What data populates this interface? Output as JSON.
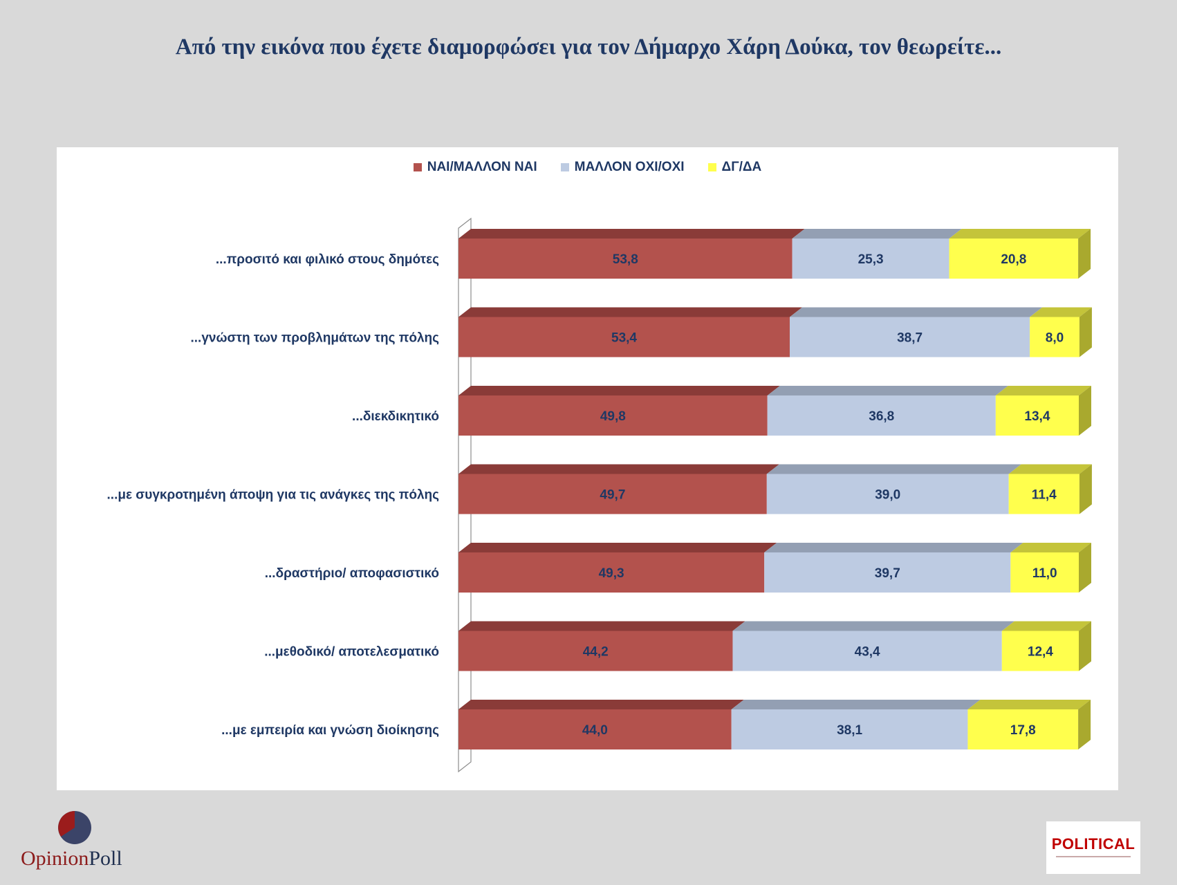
{
  "title": "Από την εικόνα που έχετε διαμορφώσει για τον Δήμαρχο Χάρη Δούκα, τον θεωρείτε...",
  "logos": {
    "left": "OpinionPoll",
    "left_part1": "Opinion",
    "left_part2": "Poll",
    "right": "POLITICAL"
  },
  "colors": {
    "series_1": "#b3524d",
    "series_1_top": "#8a3b38",
    "series_2": "#bdcbe2",
    "series_2_top": "#939fb3",
    "series_3": "#ffff4d",
    "series_3_top": "#c4c43a",
    "series_3_side": "#a9a92e",
    "label": "#1f3864"
  },
  "chart_data": {
    "type": "bar",
    "orientation": "horizontal",
    "stacked": true,
    "style": "3d",
    "legend_position": "top-center",
    "categories": [
      "...προσιτό και φιλικό στους δημότες",
      "...γνώστη των προβλημάτων της πόλης",
      "...διεκδικητικό",
      "...με συγκροτημένη άποψη για τις ανάγκες της πόλης",
      "...δραστήριο/ αποφασιστικό",
      "...μεθοδικό/ αποτελεσματικό",
      "...με εμπειρία και γνώση διοίκησης"
    ],
    "series": [
      {
        "name": "ΝΑΙ/ΜΑΛΛΟΝ ΝΑΙ",
        "values": [
          53.8,
          53.4,
          49.8,
          49.7,
          49.3,
          44.2,
          44.0
        ],
        "labels": [
          "53,8",
          "53,4",
          "49,8",
          "49,7",
          "49,3",
          "44,2",
          "44,0"
        ]
      },
      {
        "name": "ΜΑΛΛΟΝ ΟΧΙ/ΟΧΙ",
        "values": [
          25.3,
          38.7,
          36.8,
          39.0,
          39.7,
          43.4,
          38.1
        ],
        "labels": [
          "25,3",
          "38,7",
          "36,8",
          "39,0",
          "39,7",
          "43,4",
          "38,1"
        ]
      },
      {
        "name": "ΔΓ/ΔΑ",
        "values": [
          20.8,
          8.0,
          13.4,
          11.4,
          11.0,
          12.4,
          17.8
        ],
        "labels": [
          "20,8",
          "8,0",
          "13,4",
          "11,4",
          "11,0",
          "12,4",
          "17,8"
        ]
      }
    ],
    "xlim": [
      0,
      100
    ]
  }
}
